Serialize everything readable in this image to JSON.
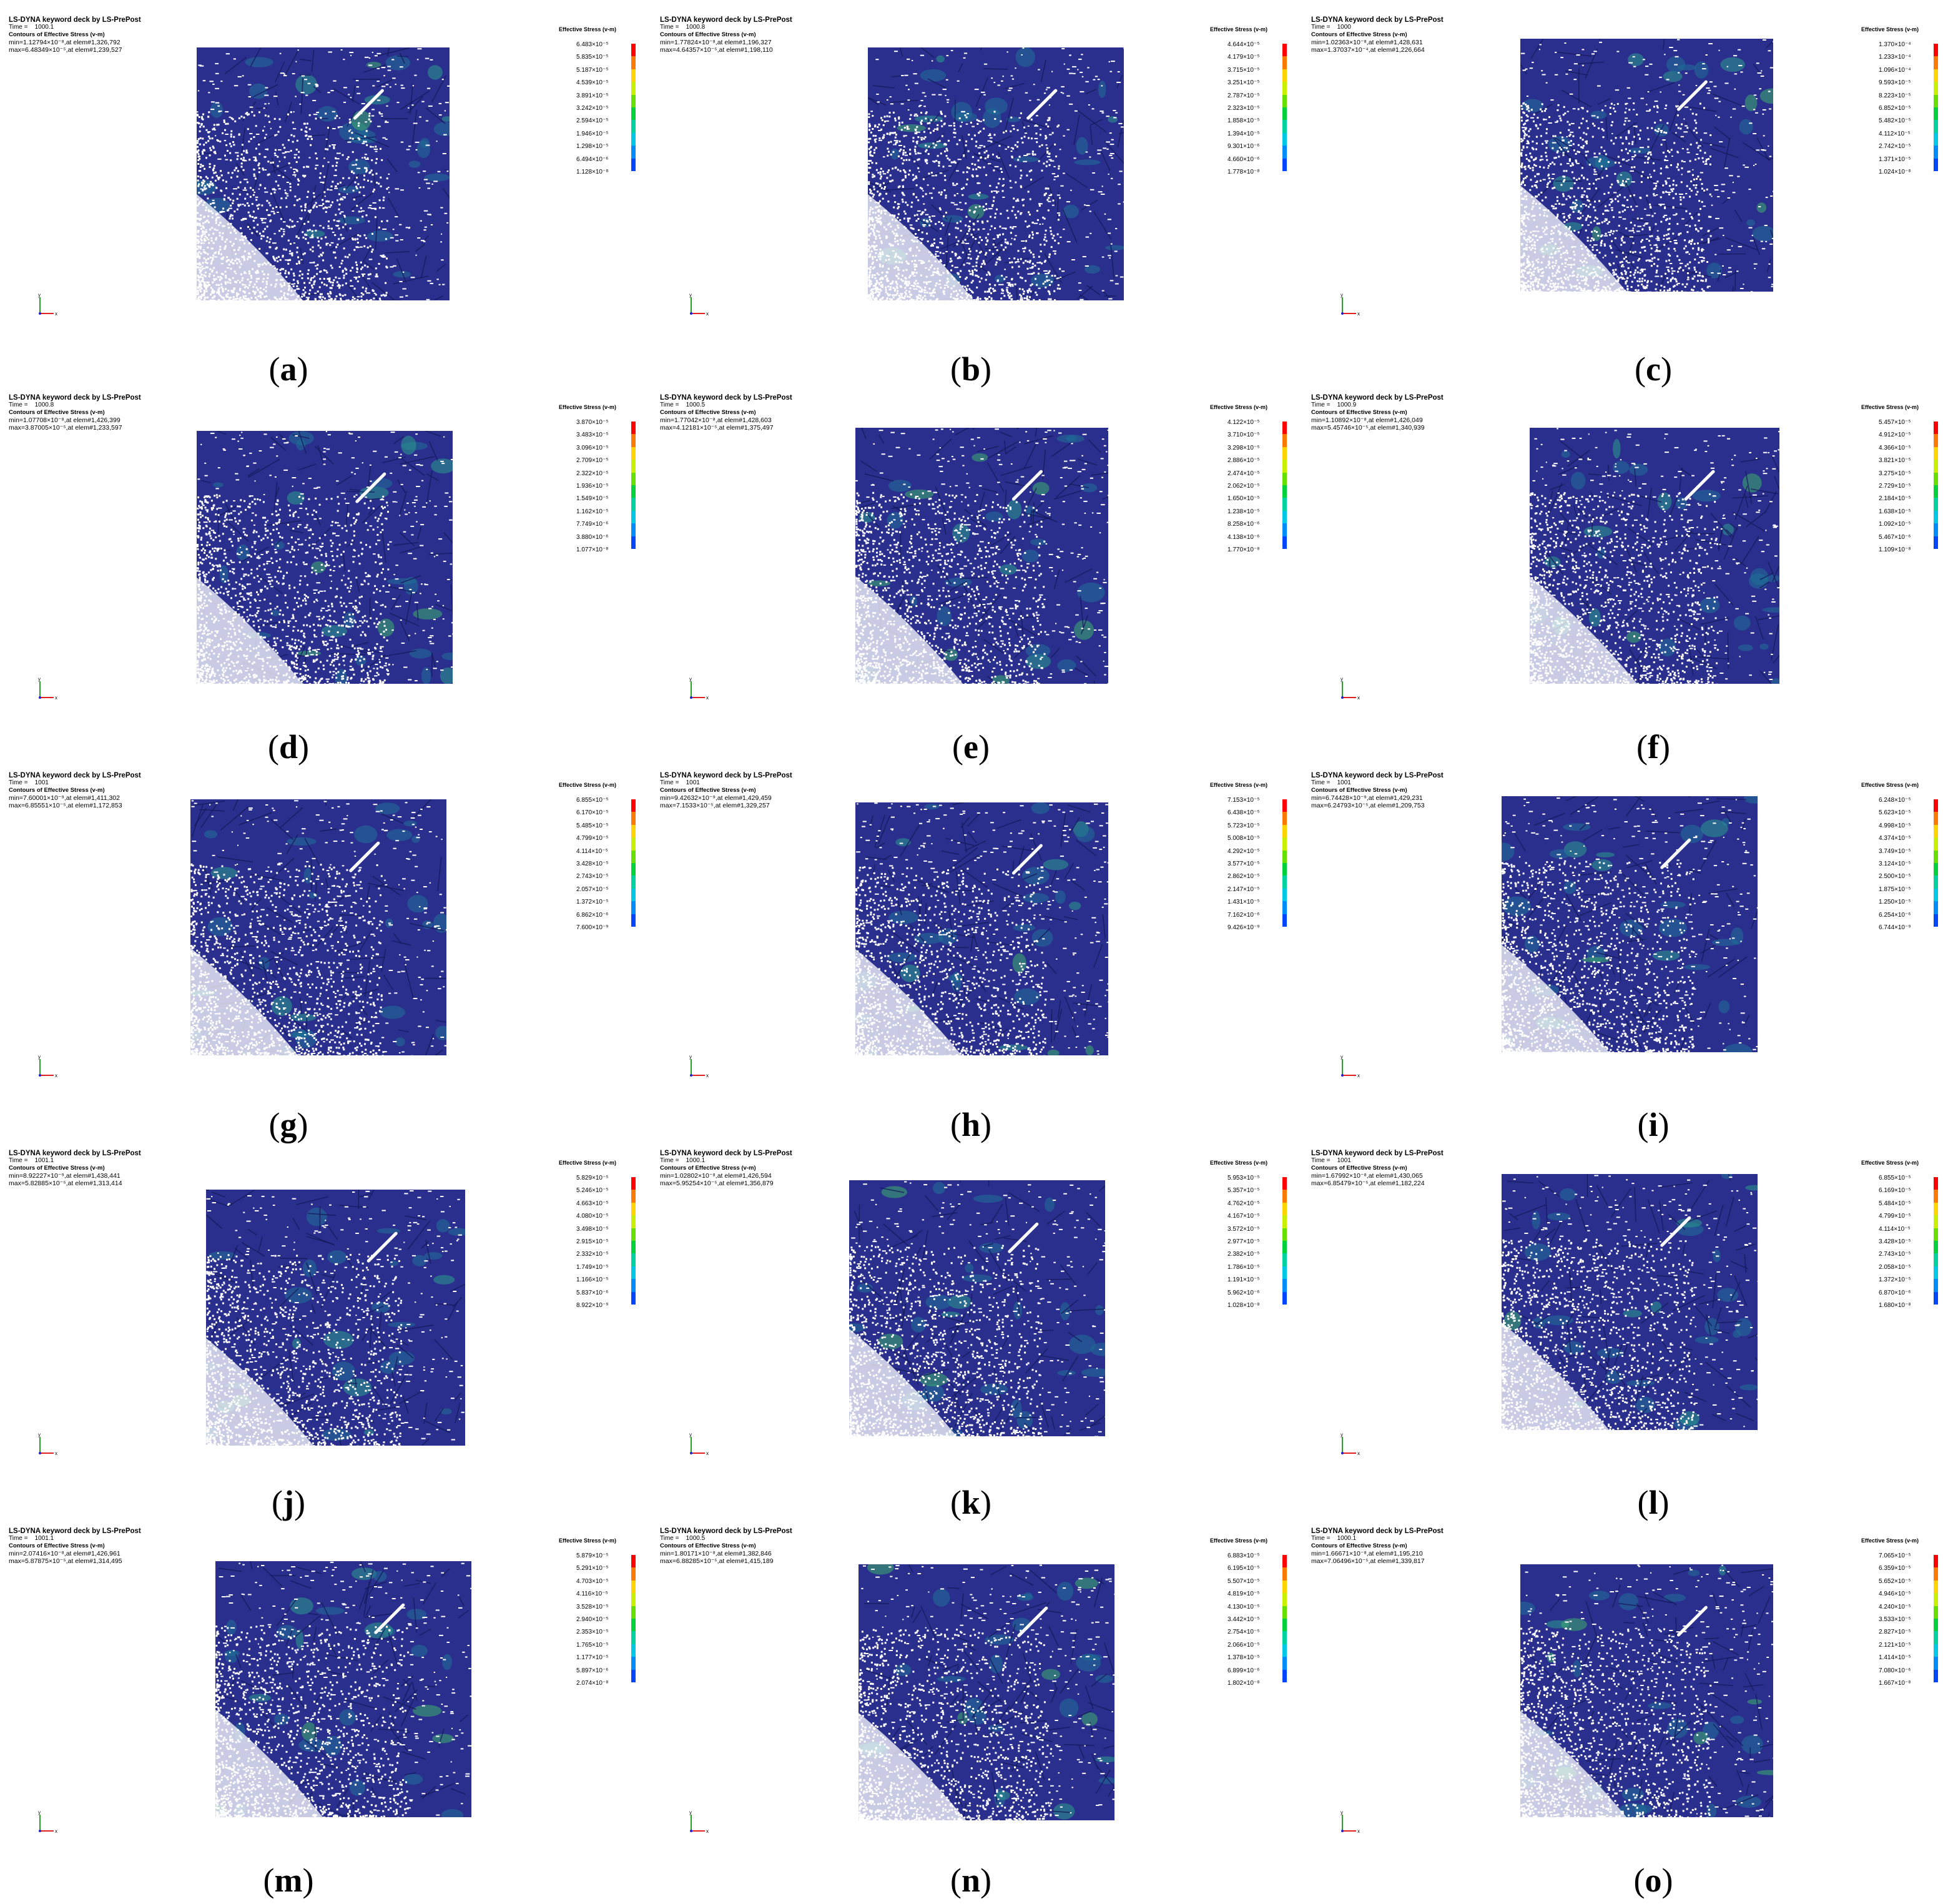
{
  "header_title": "LS-DYNA keyword deck by LS-PrePost",
  "time_prefix": "Time =",
  "contour_label": "Contours of Effective Stress (v-m)",
  "legend_title": "Effective Stress (v-m)",
  "colors": {
    "mesh_base": "#2a2f8e",
    "scale": [
      "#ff0000",
      "#ff7a00",
      "#ffd400",
      "#c8f000",
      "#66e000",
      "#00d23c",
      "#00d2a0",
      "#00c8e6",
      "#008cff",
      "#0046ff",
      "#0000d8"
    ]
  },
  "panels": [
    {
      "label": "a",
      "time": "1000.1",
      "min": "min=1.12794×10⁻⁸,at elem#1,326,792",
      "max": "max=6.48349×10⁻⁵,at elem#1,239,527",
      "legend": [
        "6.483×10⁻⁵",
        "5.835×10⁻⁵",
        "5.187×10⁻⁵",
        "4.539×10⁻⁵",
        "3.891×10⁻⁵",
        "3.242×10⁻⁵",
        "2.594×10⁻⁵",
        "1.946×10⁻⁵",
        "1.298×10⁻⁵",
        "6.494×10⁻⁶",
        "1.128×10⁻⁸"
      ]
    },
    {
      "label": "b",
      "time": "1000.8",
      "min": "min=1.77824×10⁻⁸,at elem#1,196,327",
      "max": "max=4.64357×10⁻⁵,at elem#1,198,110",
      "legend": [
        "4.644×10⁻⁵",
        "4.179×10⁻⁵",
        "3.715×10⁻⁵",
        "3.251×10⁻⁵",
        "2.787×10⁻⁵",
        "2.323×10⁻⁵",
        "1.858×10⁻⁵",
        "1.394×10⁻⁵",
        "9.301×10⁻⁶",
        "4.660×10⁻⁶",
        "1.778×10⁻⁸"
      ]
    },
    {
      "label": "c",
      "time": "1000",
      "min": "min=1.02363×10⁻⁸,at elem#1,428,631",
      "max": "max=1.37037×10⁻⁴,at elem#1,226,664",
      "legend": [
        "1.370×10⁻⁴",
        "1.233×10⁻⁴",
        "1.096×10⁻⁴",
        "9.593×10⁻⁵",
        "8.223×10⁻⁵",
        "6.852×10⁻⁵",
        "5.482×10⁻⁵",
        "4.112×10⁻⁵",
        "2.742×10⁻⁵",
        "1.371×10⁻⁵",
        "1.024×10⁻⁸"
      ]
    },
    {
      "label": "d",
      "time": "1000.8",
      "min": "min=1.07708×10⁻⁸,at elem#1,426,399",
      "max": "max=3.87005×10⁻⁵,at elem#1,233,597",
      "legend": [
        "3.870×10⁻⁵",
        "3.483×10⁻⁵",
        "3.096×10⁻⁵",
        "2.709×10⁻⁵",
        "2.322×10⁻⁵",
        "1.936×10⁻⁵",
        "1.549×10⁻⁵",
        "1.162×10⁻⁵",
        "7.749×10⁻⁶",
        "3.880×10⁻⁶",
        "1.077×10⁻⁸"
      ]
    },
    {
      "label": "e",
      "time": "1000.5",
      "min": "min=1.77042×10⁻⁸,at elem#1,428,603",
      "max": "max=4.12181×10⁻⁵,at elem#1,375,497",
      "legend": [
        "4.122×10⁻⁵",
        "3.710×10⁻⁵",
        "3.298×10⁻⁵",
        "2.886×10⁻⁵",
        "2.474×10⁻⁵",
        "2.062×10⁻⁵",
        "1.650×10⁻⁵",
        "1.238×10⁻⁵",
        "8.258×10⁻⁶",
        "4.138×10⁻⁶",
        "1.770×10⁻⁸"
      ]
    },
    {
      "label": "f",
      "time": "1000.9",
      "min": "min=1.10892×10⁻⁸,at elem#1,426,049",
      "max": "max=5.45746×10⁻⁵,at elem#1,340,939",
      "legend": [
        "5.457×10⁻⁵",
        "4.912×10⁻⁵",
        "4.366×10⁻⁵",
        "3.821×10⁻⁵",
        "3.275×10⁻⁵",
        "2.729×10⁻⁵",
        "2.184×10⁻⁵",
        "1.638×10⁻⁵",
        "1.092×10⁻⁵",
        "5.467×10⁻⁶",
        "1.109×10⁻⁸"
      ]
    },
    {
      "label": "g",
      "time": "1001",
      "min": "min=7.60001×10⁻⁹,at elem#1,411,302",
      "max": "max=6.85551×10⁻⁵,at elem#1,172,853",
      "legend": [
        "6.855×10⁻⁵",
        "6.170×10⁻⁵",
        "5.485×10⁻⁵",
        "4.799×10⁻⁵",
        "4.114×10⁻⁵",
        "3.428×10⁻⁵",
        "2.743×10⁻⁵",
        "2.057×10⁻⁵",
        "1.372×10⁻⁵",
        "6.862×10⁻⁶",
        "7.600×10⁻⁹"
      ]
    },
    {
      "label": "h",
      "time": "1001",
      "min": "min=9.42632×10⁻⁹,at elem#1,429,459",
      "max": "max=7.1533×10⁻⁵,at elem#1,329,257",
      "legend": [
        "7.153×10⁻⁵",
        "6.438×10⁻⁵",
        "5.723×10⁻⁵",
        "5.008×10⁻⁵",
        "4.292×10⁻⁵",
        "3.577×10⁻⁵",
        "2.862×10⁻⁵",
        "2.147×10⁻⁵",
        "1.431×10⁻⁵",
        "7.162×10⁻⁶",
        "9.426×10⁻⁹"
      ]
    },
    {
      "label": "i",
      "time": "1001",
      "min": "min=6.74428×10⁻⁹,at elem#1,429,231",
      "max": "max=6.24793×10⁻⁵,at elem#1,209,753",
      "legend": [
        "6.248×10⁻⁵",
        "5.623×10⁻⁵",
        "4.998×10⁻⁵",
        "4.374×10⁻⁵",
        "3.749×10⁻⁵",
        "3.124×10⁻⁵",
        "2.500×10⁻⁵",
        "1.875×10⁻⁵",
        "1.250×10⁻⁵",
        "6.254×10⁻⁶",
        "6.744×10⁻⁹"
      ]
    },
    {
      "label": "j",
      "time": "1001.1",
      "min": "min=8.92227×10⁻⁹,at elem#1,438,441",
      "max": "max=5.82885×10⁻⁵,at elem#1,313,414",
      "legend": [
        "5.829×10⁻⁵",
        "5.246×10⁻⁵",
        "4.663×10⁻⁵",
        "4.080×10⁻⁵",
        "3.498×10⁻⁵",
        "2.915×10⁻⁵",
        "2.332×10⁻⁵",
        "1.749×10⁻⁵",
        "1.166×10⁻⁵",
        "5.837×10⁻⁶",
        "8.922×10⁻⁹"
      ]
    },
    {
      "label": "k",
      "time": "1000.1",
      "min": "min=1.02802×10⁻⁸,at elem#1,426,594",
      "max": "max=5.95254×10⁻⁵,at elem#1,356,879",
      "legend": [
        "5.953×10⁻⁵",
        "5.357×10⁻⁵",
        "4.762×10⁻⁵",
        "4.167×10⁻⁵",
        "3.572×10⁻⁵",
        "2.977×10⁻⁵",
        "2.382×10⁻⁵",
        "1.786×10⁻⁵",
        "1.191×10⁻⁵",
        "5.962×10⁻⁶",
        "1.028×10⁻⁸"
      ]
    },
    {
      "label": "l",
      "time": "1001",
      "min": "min=1.67992×10⁻⁸,at elem#1,430,065",
      "max": "max=6.85479×10⁻⁵,at elem#1,182,224",
      "legend": [
        "6.855×10⁻⁵",
        "6.169×10⁻⁵",
        "5.484×10⁻⁵",
        "4.799×10⁻⁵",
        "4.114×10⁻⁵",
        "3.428×10⁻⁵",
        "2.743×10⁻⁵",
        "2.058×10⁻⁵",
        "1.372×10⁻⁵",
        "6.870×10⁻⁶",
        "1.680×10⁻⁸"
      ]
    },
    {
      "label": "m",
      "time": "1001.1",
      "min": "min=2.07416×10⁻⁸,at elem#1,426,961",
      "max": "max=5.87875×10⁻⁵,at elem#1,314,495",
      "legend": [
        "5.879×10⁻⁵",
        "5.291×10⁻⁵",
        "4.703×10⁻⁵",
        "4.116×10⁻⁵",
        "3.528×10⁻⁵",
        "2.940×10⁻⁵",
        "2.353×10⁻⁵",
        "1.765×10⁻⁵",
        "1.177×10⁻⁵",
        "5.897×10⁻⁶",
        "2.074×10⁻⁸"
      ]
    },
    {
      "label": "n",
      "time": "1000.5",
      "min": "min=1.80171×10⁻⁸,at elem#1,382,846",
      "max": "max=6.88285×10⁻⁵,at elem#1,415,189",
      "legend": [
        "6.883×10⁻⁵",
        "6.195×10⁻⁵",
        "5.507×10⁻⁵",
        "4.819×10⁻⁵",
        "4.130×10⁻⁵",
        "3.442×10⁻⁵",
        "2.754×10⁻⁵",
        "2.066×10⁻⁵",
        "1.378×10⁻⁵",
        "6.899×10⁻⁶",
        "1.802×10⁻⁸"
      ]
    },
    {
      "label": "o",
      "time": "1000.1",
      "min": "min=1.66671×10⁻⁸,at elem#1,195,210",
      "max": "max=7.06496×10⁻⁵,at elem#1,339,817",
      "legend": [
        "7.065×10⁻⁵",
        "6.359×10⁻⁵",
        "5.652×10⁻⁵",
        "4.946×10⁻⁵",
        "4.240×10⁻⁵",
        "3.533×10⁻⁵",
        "2.827×10⁻⁵",
        "2.121×10⁻⁵",
        "1.414×10⁻⁵",
        "7.080×10⁻⁶",
        "1.667×10⁻⁸"
      ]
    }
  ]
}
